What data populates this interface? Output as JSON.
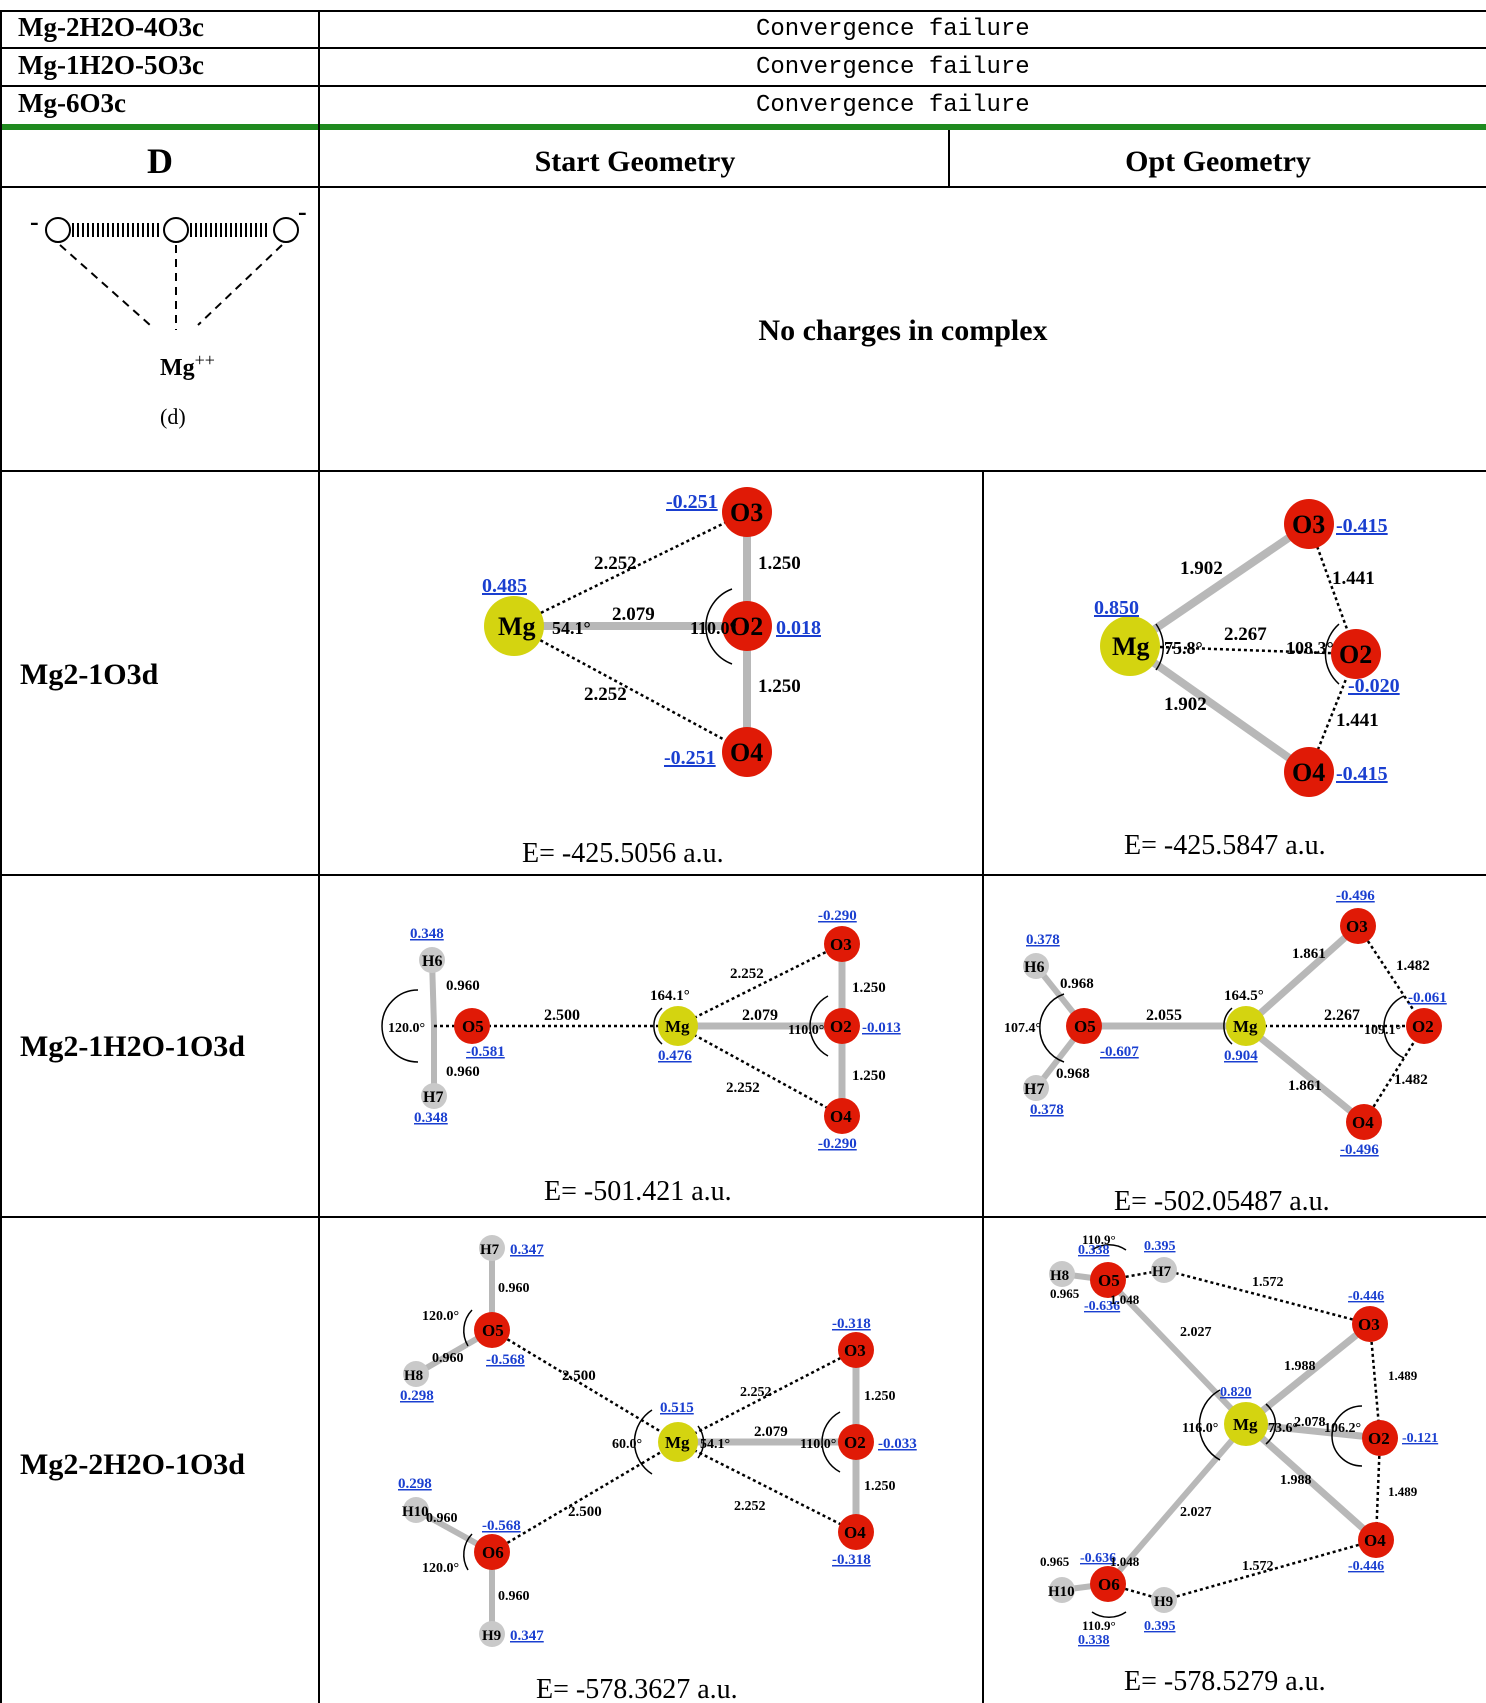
{
  "top_rows": [
    {
      "name": "Mg-2H2O-4O3c",
      "status": "Convergence failure"
    },
    {
      "name": "Mg-1H2O-5O3c",
      "status": "Convergence failure"
    },
    {
      "name": "Mg-6O3c",
      "status": "Convergence failure"
    }
  ],
  "header": {
    "section": "D",
    "start": "Start Geometry",
    "opt": "Opt Geometry"
  },
  "scheme": {
    "ion": "Mg",
    "charge": "++",
    "caption": "(d)",
    "note": "No charges in complex"
  },
  "rows": [
    {
      "name": "Mg2-1O3d",
      "start": {
        "energy": "E= -425.5056 a.u.",
        "atoms": [
          "Mg",
          "O2",
          "O3",
          "O4"
        ],
        "charges": [
          "0.485",
          "0.018",
          "-0.251",
          "-0.251"
        ],
        "bonds": [
          "2.079",
          "1.250",
          "1.250",
          "2.252",
          "2.252"
        ],
        "angles": [
          "54.1°",
          "110.0°"
        ]
      },
      "opt": {
        "energy": "E= -425.5847 a.u.",
        "atoms": [
          "Mg",
          "O2",
          "O3",
          "O4"
        ],
        "charges": [
          "0.850",
          "-0.020",
          "-0.415",
          "-0.415"
        ],
        "bonds": [
          "2.267",
          "1.441",
          "1.441",
          "1.902",
          "1.902"
        ],
        "angles": [
          "75.8°",
          "108.3°"
        ]
      }
    },
    {
      "name": "Mg2-1H2O-1O3d",
      "start": {
        "energy": "E= -501.421 a.u.",
        "atoms": [
          "H6",
          "O5",
          "H7",
          "Mg",
          "O3",
          "O2",
          "O4"
        ],
        "charges": [
          "0.348",
          "-0.581",
          "0.348",
          "0.476",
          "-0.290",
          "-0.013",
          "-0.290"
        ],
        "bonds": [
          "0.960",
          "0.960",
          "2.500",
          "2.079",
          "2.252",
          "2.252",
          "1.250",
          "1.250"
        ],
        "angles": [
          "120.0°",
          "164.1°",
          "110.0°"
        ]
      },
      "opt": {
        "energy": "E= -502.05487 a.u.",
        "atoms": [
          "H6",
          "O5",
          "H7",
          "Mg",
          "O3",
          "O2",
          "O4"
        ],
        "charges": [
          "0.378",
          "-0.607",
          "0.378",
          "0.904",
          "-0.496",
          "-0.061",
          "-0.496"
        ],
        "bonds": [
          "0.968",
          "0.968",
          "2.055",
          "2.267",
          "1.861",
          "1.861",
          "1.482",
          "1.482"
        ],
        "angles": [
          "107.4°",
          "164.5°",
          "109.1°"
        ]
      }
    },
    {
      "name": "Mg2-2H2O-1O3d",
      "start": {
        "energy": "E= -578.3627 a.u.",
        "atoms": [
          "H7",
          "O5",
          "H8",
          "H10",
          "O6",
          "H9",
          "Mg",
          "O3",
          "O2",
          "O4"
        ],
        "charges": [
          "0.347",
          "-0.568",
          "0.298",
          "0.298",
          "-0.568",
          "0.347",
          "0.515",
          "-0.318",
          "-0.033",
          "-0.318"
        ],
        "bonds": [
          "0.960",
          "0.960",
          "0.960",
          "0.960",
          "2.500",
          "2.500",
          "2.079",
          "2.252",
          "2.252",
          "1.250",
          "1.250"
        ],
        "angles": [
          "120.0°",
          "120.0°",
          "60.0°",
          "54.1°",
          "110.0°"
        ]
      },
      "opt": {
        "energy": "E= -578.5279 a.u.",
        "atoms": [
          "H8",
          "O5",
          "H7",
          "Mg",
          "O3",
          "O2",
          "O4",
          "O6",
          "H10",
          "H9"
        ],
        "charges": [
          "0.338",
          "-0.636",
          "0.395",
          "0.820",
          "-0.446",
          "-0.121",
          "-0.446",
          "-0.636",
          "0.338",
          "0.395"
        ],
        "bonds": [
          "1.048",
          "0.965",
          "1.572",
          "2.027",
          "2.027",
          "1.988",
          "1.988",
          "2.078",
          "1.489",
          "1.489",
          "0.965",
          "1.048",
          "1.572"
        ],
        "angles": [
          "110.9°",
          "116.0°",
          "73.6°",
          "106.2°",
          "110.9°"
        ]
      }
    }
  ],
  "colors": {
    "oxygen": "#e01a06",
    "magnesium": "#d4d410",
    "hydrogen": "#c9c9c9",
    "charge": "#1a3fd0",
    "rule": "#1f8a1f"
  }
}
